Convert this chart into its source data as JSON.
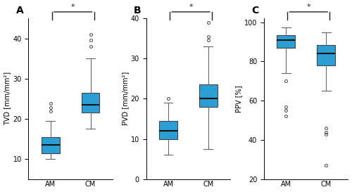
{
  "panels": [
    {
      "label": "A",
      "ylabel": "TVD [mm/mm²]",
      "ylim": [
        5,
        45
      ],
      "yticks": [
        10,
        20,
        30,
        40
      ],
      "boxes": [
        {
          "group": "AM",
          "median": 13.5,
          "q1": 11.5,
          "q3": 15.5,
          "whisker_low": 10.0,
          "whisker_high": 19.5,
          "outliers": [
            22.0,
            22.8,
            23.8
          ]
        },
        {
          "group": "CM",
          "median": 23.5,
          "q1": 21.5,
          "q3": 26.5,
          "whisker_low": 17.5,
          "whisker_high": 35.0,
          "outliers": [
            38.0,
            39.5,
            41.0
          ]
        }
      ]
    },
    {
      "label": "B",
      "ylabel": "PVD [mm/mm²]",
      "ylim": [
        0,
        40
      ],
      "yticks": [
        0,
        10,
        20,
        30,
        40
      ],
      "boxes": [
        {
          "group": "AM",
          "median": 12.0,
          "q1": 10.0,
          "q3": 14.5,
          "whisker_low": 6.0,
          "whisker_high": 19.0,
          "outliers": [
            20.0
          ]
        },
        {
          "group": "CM",
          "median": 20.0,
          "q1": 18.0,
          "q3": 23.5,
          "whisker_low": 7.5,
          "whisker_high": 33.0,
          "outliers": [
            34.5,
            35.5,
            39.0
          ]
        }
      ]
    },
    {
      "label": "C",
      "ylabel": "PPV [%]",
      "ylim": [
        20,
        102
      ],
      "yticks": [
        20,
        40,
        60,
        80,
        100
      ],
      "boxes": [
        {
          "group": "AM",
          "median": 91.0,
          "q1": 87.0,
          "q3": 93.5,
          "whisker_low": 74.0,
          "whisker_high": 97.5,
          "outliers": [
            70.0,
            57.0,
            55.0,
            52.0
          ]
        },
        {
          "group": "CM",
          "median": 84.0,
          "q1": 78.0,
          "q3": 88.5,
          "whisker_low": 65.0,
          "whisker_high": 95.0,
          "outliers": [
            46.0,
            44.0,
            43.0,
            27.0
          ]
        }
      ]
    }
  ],
  "box_color": "#2B9FD4",
  "box_edge_color": "#444444",
  "median_color": "#111111",
  "whisker_color": "#666666",
  "outlier_color": "#444444",
  "sig_bracket_color": "#222222",
  "background_color": "#ffffff",
  "fontsize_label": 7,
  "fontsize_panel": 10,
  "fontsize_tick": 7
}
